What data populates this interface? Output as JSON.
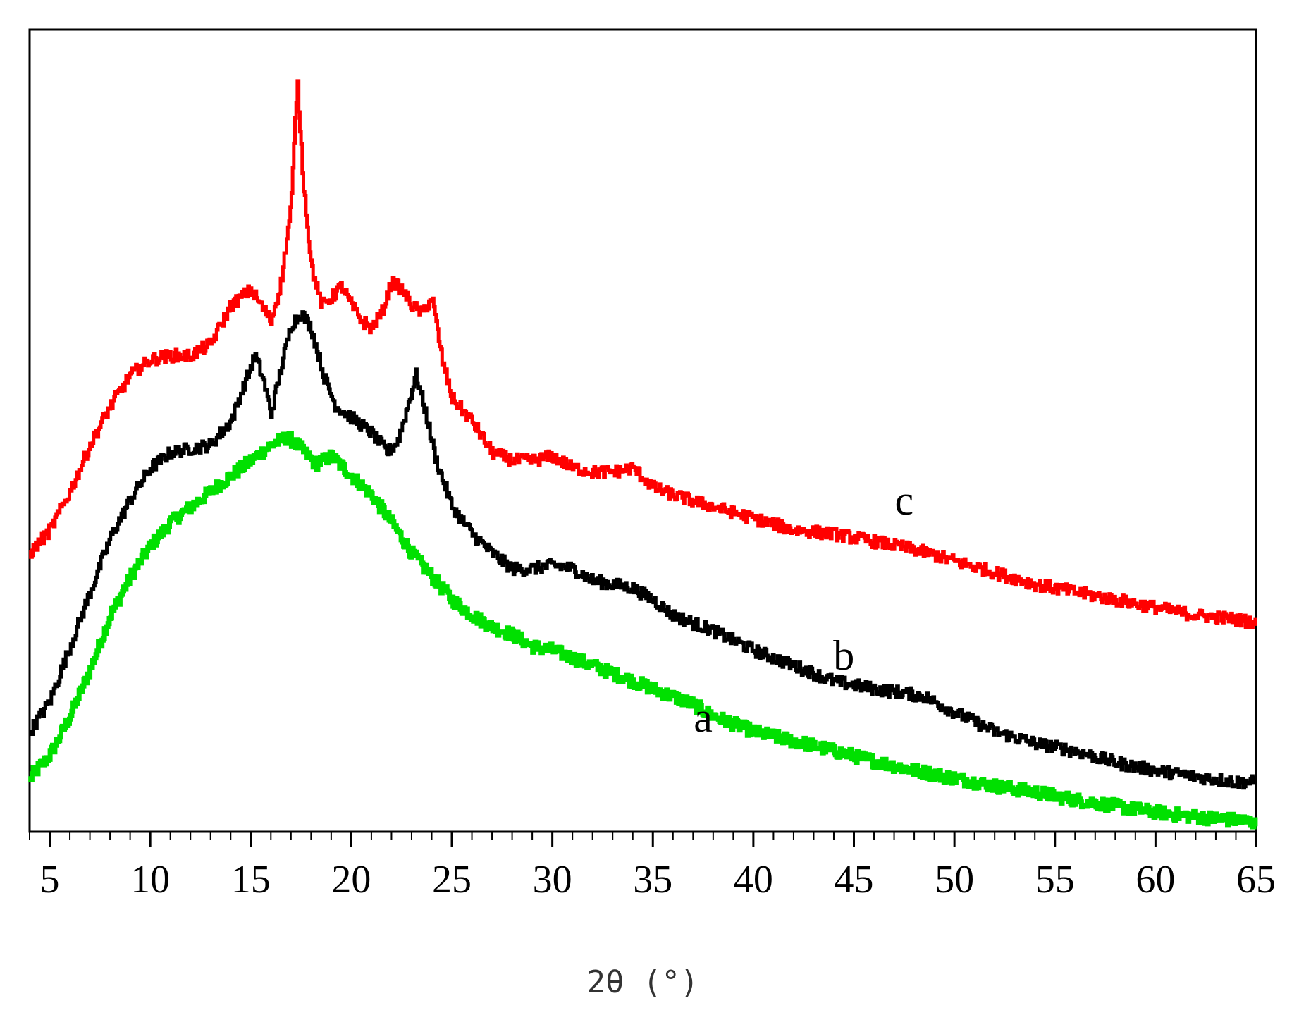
{
  "chart_data": {
    "type": "line",
    "xlabel": "2θ (°)",
    "ylabel": "",
    "xlim": [
      4,
      65
    ],
    "ylim": [
      0,
      100
    ],
    "xticks": [
      5,
      10,
      15,
      20,
      25,
      30,
      35,
      40,
      45,
      50,
      55,
      60,
      65
    ],
    "y_tick_labels_shown": false,
    "grid": false,
    "line_colors": {
      "a": "#00e000",
      "b": "#000000",
      "c": "#ff0000"
    },
    "series": [
      {
        "name": "a",
        "color": "#00e000",
        "label_position": [
          37.5,
          12
        ],
        "x": [
          4,
          5,
          6,
          7,
          8,
          9,
          10,
          11,
          12,
          13,
          14,
          15,
          16,
          16.8,
          17.5,
          18.2,
          19,
          19.6,
          20,
          21,
          22,
          23,
          24,
          25,
          26,
          27,
          28,
          29,
          30,
          31,
          32,
          33,
          34,
          35,
          36,
          37,
          38,
          39,
          40,
          42,
          44,
          46,
          48,
          50,
          52,
          54,
          56,
          58,
          60,
          62,
          64,
          65
        ],
        "y": [
          6,
          9,
          14,
          20,
          27,
          32,
          36,
          39,
          41,
          43,
          45,
          47,
          49,
          50,
          48.5,
          46.5,
          47.5,
          46,
          45,
          42.5,
          39,
          35,
          32,
          29,
          27,
          25.5,
          24.5,
          23,
          22.5,
          21.5,
          20.5,
          19.5,
          18.5,
          17.5,
          16.5,
          15.5,
          14,
          13,
          12,
          10.8,
          9.5,
          8.2,
          7,
          6,
          5,
          4.2,
          3.2,
          2.4,
          1.6,
          1,
          0.6,
          0.3
        ]
      },
      {
        "name": "b",
        "color": "#000000",
        "label_position": [
          44.5,
          20
        ],
        "x": [
          4,
          5,
          6,
          7,
          8,
          9,
          10,
          11,
          12,
          13,
          14,
          14.7,
          15.2,
          15.6,
          16,
          16.5,
          17,
          17.5,
          18,
          18.6,
          19.2,
          20,
          21,
          21.8,
          22.3,
          22.8,
          23.2,
          23.7,
          24.2,
          25,
          26,
          27,
          28,
          29,
          30,
          31,
          32,
          33,
          34,
          35,
          36,
          38,
          40,
          42,
          44,
          46,
          47.5,
          48.5,
          50,
          52,
          54,
          56,
          58,
          60,
          62,
          64,
          65
        ],
        "y": [
          12,
          16,
          23,
          30,
          37,
          42,
          46,
          48,
          48.5,
          49,
          52,
          57,
          60.5,
          57.5,
          53,
          59,
          64.5,
          66,
          64,
          58,
          54,
          52.5,
          50.5,
          48,
          49.5,
          54,
          58,
          53,
          47,
          41,
          37.5,
          35,
          33,
          33,
          33.5,
          33,
          31.5,
          31,
          30.5,
          29,
          27,
          25,
          22.5,
          20.5,
          18.5,
          17.5,
          17,
          16.5,
          14.5,
          12,
          10.5,
          9.5,
          8,
          7,
          6.2,
          5.5,
          5.5
        ]
      },
      {
        "name": "c",
        "color": "#ff0000",
        "label_position": [
          47.5,
          40
        ],
        "x": [
          4,
          5,
          6,
          7,
          8,
          9,
          10,
          11,
          12,
          13,
          14,
          15,
          15.5,
          16,
          16.5,
          17,
          17.3,
          17.6,
          18,
          18.5,
          19,
          19.5,
          20,
          20.5,
          21,
          21.5,
          22,
          22.5,
          23,
          23.5,
          24,
          24.5,
          25,
          26,
          27,
          28,
          29,
          30,
          31,
          32,
          33,
          34,
          35,
          36,
          38,
          40,
          42,
          44,
          46,
          48,
          50,
          52,
          54,
          56,
          58,
          60,
          62,
          64,
          65
        ],
        "y": [
          35,
          38,
          43,
          49,
          54,
          58,
          60,
          60.5,
          60.5,
          62,
          67,
          69,
          67,
          65,
          70,
          80,
          96,
          83,
          72,
          67,
          68,
          69.5,
          67,
          65,
          64,
          66,
          70,
          69,
          67,
          66,
          68,
          60,
          55,
          52,
          48,
          47,
          47,
          47.5,
          46,
          45.5,
          45.5,
          46,
          43.5,
          42.5,
          41,
          39.5,
          38,
          37.5,
          36.5,
          35.5,
          34,
          32.5,
          31,
          30,
          29,
          28,
          27,
          26.5,
          26
        ]
      }
    ]
  }
}
